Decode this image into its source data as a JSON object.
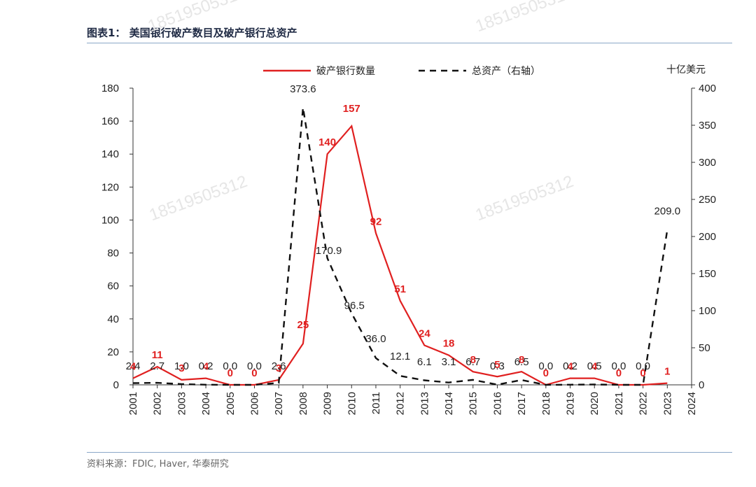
{
  "header": {
    "title": "图表1：  美国银行破产数目及破产银行总资产"
  },
  "footer": {
    "source": "资料来源：FDIC, Haver, 华泰研究"
  },
  "watermark": "18519505312",
  "colors": {
    "count": "#e02020",
    "assets": "#111111",
    "rule": "#8aa7c7"
  },
  "chart_data": {
    "type": "line",
    "x": [
      2001,
      2002,
      2003,
      2004,
      2005,
      2006,
      2007,
      2008,
      2009,
      2010,
      2011,
      2012,
      2013,
      2014,
      2015,
      2016,
      2017,
      2018,
      2019,
      2020,
      2021,
      2022,
      2023
    ],
    "x_ticks": [
      2001,
      2002,
      2003,
      2004,
      2005,
      2006,
      2007,
      2008,
      2009,
      2010,
      2011,
      2012,
      2013,
      2014,
      2015,
      2016,
      2017,
      2018,
      2019,
      2020,
      2021,
      2022,
      2023,
      2024
    ],
    "xlim": [
      2001,
      2024
    ],
    "series": [
      {
        "name": "破产银行数量",
        "axis": "left",
        "style": "solid",
        "values": [
          4,
          11,
          3,
          4,
          0,
          0,
          3,
          25,
          140,
          157,
          92,
          51,
          24,
          18,
          8,
          5,
          8,
          0,
          4,
          4,
          0,
          0,
          1
        ]
      },
      {
        "name": "总资产（右轴）",
        "axis": "right",
        "style": "dashed",
        "values": [
          2.4,
          2.7,
          1.0,
          0.2,
          0.0,
          0.0,
          2.6,
          373.6,
          170.9,
          96.5,
          36.0,
          12.1,
          6.1,
          3.1,
          6.7,
          0.3,
          6.5,
          0.0,
          0.2,
          0.5,
          0.0,
          0.0,
          209.0
        ]
      }
    ],
    "left_axis": {
      "ylim": [
        0,
        180
      ],
      "ticks": [
        0,
        20,
        40,
        60,
        80,
        100,
        120,
        140,
        160,
        180
      ]
    },
    "right_axis": {
      "ylim": [
        0,
        400
      ],
      "ticks": [
        0,
        50,
        100,
        150,
        200,
        250,
        300,
        350,
        400
      ],
      "unit": "十亿美元"
    },
    "count_labels": [
      "4",
      "11",
      "3",
      "4",
      "0",
      "0",
      "3",
      "25",
      "140",
      "157",
      "92",
      "51",
      "24",
      "18",
      "8",
      "5",
      "8",
      "0",
      "4",
      "4",
      "0",
      "0",
      "1"
    ],
    "asset_labels": [
      "2.4",
      "2.7",
      "1.0",
      "0.2",
      "0.0",
      "0.0",
      "2.6",
      "373.6",
      "170.9",
      "96.5",
      "36.0",
      "12.1",
      "6.1",
      "3.1",
      "6.7",
      "0.3",
      "6.5",
      "0.0",
      "0.2",
      "0.5",
      "0.0",
      "0.0",
      "209.0"
    ],
    "legend": {
      "position": "top"
    },
    "grid": false
  }
}
